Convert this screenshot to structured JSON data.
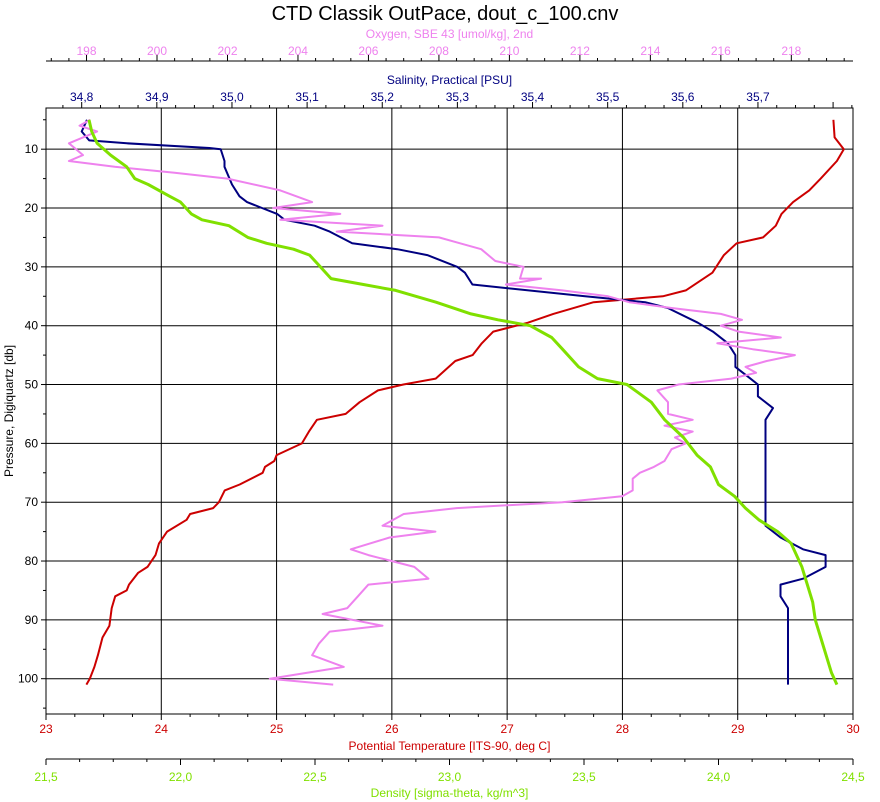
{
  "chart_data": {
    "type": "line",
    "title": "CTD Classik OutPace, dout_c_100.cnv",
    "y_axis": {
      "label": "Pressure, Digiquartz [db]",
      "range": [
        3,
        106
      ],
      "inverted": true,
      "ticks": [
        10,
        20,
        30,
        40,
        50,
        60,
        70,
        80,
        90,
        100
      ]
    },
    "x_axes": [
      {
        "id": "oxygen",
        "label": "Oxygen, SBE 43 [umol/kg], 2nd",
        "position": "top-outer",
        "color": "#ee82ee",
        "range": [
          196.85,
          219.75
        ],
        "ticks": [
          198,
          200,
          202,
          204,
          206,
          208,
          210,
          212,
          214,
          216,
          218
        ],
        "tick_labels": [
          "198",
          "200",
          "202",
          "204",
          "206",
          "208",
          "210",
          "212",
          "214",
          "216",
          "218"
        ]
      },
      {
        "id": "salinity",
        "label": "Salinity, Practical [PSU]",
        "position": "top-inner",
        "color": "#000080",
        "range": [
          34.7525,
          35.8265
        ],
        "ticks": [
          34.8,
          34.9,
          35.0,
          35.1,
          35.2,
          35.3,
          35.4,
          35.5,
          35.6,
          35.7
        ],
        "tick_labels": [
          "34,8",
          "34,9",
          "35,0",
          "35,1",
          "35,2",
          "35,3",
          "35,4",
          "35,5",
          "35,6",
          "35,7"
        ]
      },
      {
        "id": "temperature",
        "label": "Potential Temperature [ITS-90, deg C]",
        "position": "bottom-inner",
        "color": "#cc0000",
        "range": [
          23,
          30
        ],
        "ticks": [
          23,
          24,
          25,
          26,
          27,
          28,
          29,
          30
        ],
        "tick_labels": [
          "23",
          "24",
          "25",
          "26",
          "27",
          "28",
          "29",
          "30"
        ]
      },
      {
        "id": "density",
        "label": "Density [sigma-theta, kg/m^3]",
        "position": "bottom-outer",
        "color": "#80e000",
        "range": [
          21.5,
          24.5
        ],
        "ticks": [
          21.5,
          22.0,
          22.5,
          23.0,
          23.5,
          24.0,
          24.5
        ],
        "tick_labels": [
          "21,5",
          "22,0",
          "22,5",
          "23,0",
          "23,5",
          "24,0",
          "24,5"
        ]
      }
    ],
    "grid": true,
    "series": [
      {
        "axis": "temperature",
        "color": "#cc0000",
        "points": [
          [
            29.83,
            5
          ],
          [
            29.84,
            8
          ],
          [
            29.92,
            10
          ],
          [
            29.86,
            12
          ],
          [
            29.72,
            15
          ],
          [
            29.62,
            17
          ],
          [
            29.48,
            19
          ],
          [
            29.38,
            21
          ],
          [
            29.33,
            23
          ],
          [
            29.22,
            25
          ],
          [
            28.99,
            26
          ],
          [
            28.88,
            28
          ],
          [
            28.78,
            31
          ],
          [
            28.55,
            34
          ],
          [
            28.35,
            35
          ],
          [
            27.75,
            36
          ],
          [
            27.4,
            38
          ],
          [
            27.18,
            39.5
          ],
          [
            26.88,
            41
          ],
          [
            26.78,
            43
          ],
          [
            26.7,
            45
          ],
          [
            26.55,
            46
          ],
          [
            26.38,
            49
          ],
          [
            26.1,
            50
          ],
          [
            25.88,
            51
          ],
          [
            25.72,
            53
          ],
          [
            25.6,
            55
          ],
          [
            25.35,
            56
          ],
          [
            25.28,
            58
          ],
          [
            25.22,
            60
          ],
          [
            25.0,
            62
          ],
          [
            24.98,
            63
          ],
          [
            24.9,
            64
          ],
          [
            24.88,
            65
          ],
          [
            24.68,
            67
          ],
          [
            24.55,
            68
          ],
          [
            24.5,
            70
          ],
          [
            24.45,
            71
          ],
          [
            24.25,
            72
          ],
          [
            24.22,
            73
          ],
          [
            24.05,
            75
          ],
          [
            23.98,
            77
          ],
          [
            23.95,
            79
          ],
          [
            23.88,
            81
          ],
          [
            23.8,
            82
          ],
          [
            23.72,
            84
          ],
          [
            23.7,
            85
          ],
          [
            23.6,
            86
          ],
          [
            23.57,
            88
          ],
          [
            23.55,
            91
          ],
          [
            23.49,
            93
          ],
          [
            23.45,
            96
          ],
          [
            23.42,
            98
          ],
          [
            23.38,
            100
          ],
          [
            23.35,
            101
          ]
        ]
      },
      {
        "axis": "salinity",
        "color": "#000080",
        "points": [
          [
            34.807,
            5
          ],
          [
            34.8,
            7
          ],
          [
            34.81,
            8.5
          ],
          [
            34.86,
            9
          ],
          [
            34.97,
            9.8
          ],
          [
            34.985,
            10
          ],
          [
            34.99,
            12
          ],
          [
            34.99,
            13
          ],
          [
            35.0,
            16
          ],
          [
            35.01,
            18
          ],
          [
            35.02,
            19
          ],
          [
            35.04,
            20
          ],
          [
            35.06,
            21
          ],
          [
            35.07,
            22
          ],
          [
            35.11,
            23
          ],
          [
            35.13,
            24
          ],
          [
            35.16,
            26
          ],
          [
            35.22,
            27
          ],
          [
            35.26,
            28
          ],
          [
            35.3,
            30
          ],
          [
            35.31,
            31
          ],
          [
            35.32,
            33
          ],
          [
            35.47,
            35
          ],
          [
            35.55,
            36
          ],
          [
            35.58,
            37
          ],
          [
            35.62,
            39.5
          ],
          [
            35.64,
            41
          ],
          [
            35.66,
            43
          ],
          [
            35.67,
            45
          ],
          [
            35.67,
            47
          ],
          [
            35.69,
            49
          ],
          [
            35.7,
            50
          ],
          [
            35.7,
            52
          ],
          [
            35.72,
            54
          ],
          [
            35.71,
            56
          ],
          [
            35.71,
            58
          ],
          [
            35.71,
            60
          ],
          [
            35.71,
            62
          ],
          [
            35.71,
            64
          ],
          [
            35.71,
            66
          ],
          [
            35.71,
            68
          ],
          [
            35.71,
            70
          ],
          [
            35.71,
            72
          ],
          [
            35.71,
            74
          ],
          [
            35.73,
            76
          ],
          [
            35.76,
            78
          ],
          [
            35.79,
            79
          ],
          [
            35.79,
            81
          ],
          [
            35.76,
            83
          ],
          [
            35.73,
            84
          ],
          [
            35.73,
            86
          ],
          [
            35.74,
            88
          ],
          [
            35.74,
            90
          ],
          [
            35.74,
            92
          ],
          [
            35.74,
            94
          ],
          [
            35.74,
            96
          ],
          [
            35.74,
            98
          ],
          [
            35.74,
            100
          ],
          [
            35.74,
            101
          ]
        ]
      },
      {
        "axis": "oxygen",
        "color": "#ee82ee",
        "points": [
          [
            198.1,
            5
          ],
          [
            197.8,
            6
          ],
          [
            198.3,
            7
          ],
          [
            197.9,
            8
          ],
          [
            197.5,
            9
          ],
          [
            197.7,
            10
          ],
          [
            197.9,
            11
          ],
          [
            197.5,
            12
          ],
          [
            198.8,
            13
          ],
          [
            200.5,
            14
          ],
          [
            202.0,
            15
          ],
          [
            203.5,
            17
          ],
          [
            204.4,
            19
          ],
          [
            203.3,
            20
          ],
          [
            205.2,
            21
          ],
          [
            203.5,
            22
          ],
          [
            206.4,
            23
          ],
          [
            205.1,
            24
          ],
          [
            208.0,
            25
          ],
          [
            208.6,
            26
          ],
          [
            209.2,
            27
          ],
          [
            209.6,
            29
          ],
          [
            210.4,
            30
          ],
          [
            210.3,
            32
          ],
          [
            210.9,
            32
          ],
          [
            209.9,
            33
          ],
          [
            211.5,
            34
          ],
          [
            212.8,
            35
          ],
          [
            213.4,
            36
          ],
          [
            214.6,
            37
          ],
          [
            216.0,
            38
          ],
          [
            216.6,
            39
          ],
          [
            216.0,
            40
          ],
          [
            216.5,
            41
          ],
          [
            217.7,
            42
          ],
          [
            215.9,
            43
          ],
          [
            216.9,
            44
          ],
          [
            218.1,
            45
          ],
          [
            217.3,
            46
          ],
          [
            216.7,
            47
          ],
          [
            217.0,
            48
          ],
          [
            216.3,
            49
          ],
          [
            214.8,
            50
          ],
          [
            214.2,
            51
          ],
          [
            214.5,
            53
          ],
          [
            214.5,
            55
          ],
          [
            215.2,
            56
          ],
          [
            214.4,
            57
          ],
          [
            215.2,
            58
          ],
          [
            214.7,
            59
          ],
          [
            215.0,
            60
          ],
          [
            214.6,
            61
          ],
          [
            214.5,
            62
          ],
          [
            214.4,
            63
          ],
          [
            214.1,
            64
          ],
          [
            213.7,
            65
          ],
          [
            213.5,
            66
          ],
          [
            213.5,
            68
          ],
          [
            213.2,
            69
          ],
          [
            211.5,
            70
          ],
          [
            208.5,
            71
          ],
          [
            207.0,
            72
          ],
          [
            206.4,
            74
          ],
          [
            207.9,
            75
          ],
          [
            206.6,
            76
          ],
          [
            205.5,
            78
          ],
          [
            206.0,
            79
          ],
          [
            207.3,
            81
          ],
          [
            207.7,
            83
          ],
          [
            206.0,
            84
          ],
          [
            205.7,
            86
          ],
          [
            205.4,
            88
          ],
          [
            204.7,
            89
          ],
          [
            206.4,
            91
          ],
          [
            204.9,
            92
          ],
          [
            204.6,
            94
          ],
          [
            204.4,
            96
          ],
          [
            205.3,
            98
          ],
          [
            203.2,
            100
          ],
          [
            205.0,
            101
          ]
        ]
      },
      {
        "axis": "density",
        "color": "#80e000",
        "points": [
          [
            21.66,
            5
          ],
          [
            21.67,
            7
          ],
          [
            21.69,
            9
          ],
          [
            21.74,
            11
          ],
          [
            21.8,
            13
          ],
          [
            21.83,
            15
          ],
          [
            21.88,
            16
          ],
          [
            21.96,
            18
          ],
          [
            22.0,
            19
          ],
          [
            22.04,
            21
          ],
          [
            22.08,
            22
          ],
          [
            22.18,
            23
          ],
          [
            22.25,
            25
          ],
          [
            22.32,
            26
          ],
          [
            22.42,
            27
          ],
          [
            22.48,
            28
          ],
          [
            22.52,
            30
          ],
          [
            22.56,
            32
          ],
          [
            22.68,
            33
          ],
          [
            22.8,
            34
          ],
          [
            22.95,
            36
          ],
          [
            23.08,
            38
          ],
          [
            23.18,
            39
          ],
          [
            23.3,
            40
          ],
          [
            23.38,
            42
          ],
          [
            23.42,
            44
          ],
          [
            23.48,
            47
          ],
          [
            23.55,
            49
          ],
          [
            23.66,
            50
          ],
          [
            23.75,
            53
          ],
          [
            23.8,
            56
          ],
          [
            23.87,
            59
          ],
          [
            23.92,
            62
          ],
          [
            23.97,
            64
          ],
          [
            24.0,
            67
          ],
          [
            24.06,
            69
          ],
          [
            24.1,
            71
          ],
          [
            24.15,
            73
          ],
          [
            24.22,
            75
          ],
          [
            24.27,
            77
          ],
          [
            24.29,
            79
          ],
          [
            24.31,
            81
          ],
          [
            24.33,
            84
          ],
          [
            24.35,
            87
          ],
          [
            24.36,
            90
          ],
          [
            24.38,
            93
          ],
          [
            24.4,
            96
          ],
          [
            24.42,
            99
          ],
          [
            24.44,
            101
          ]
        ]
      }
    ]
  }
}
